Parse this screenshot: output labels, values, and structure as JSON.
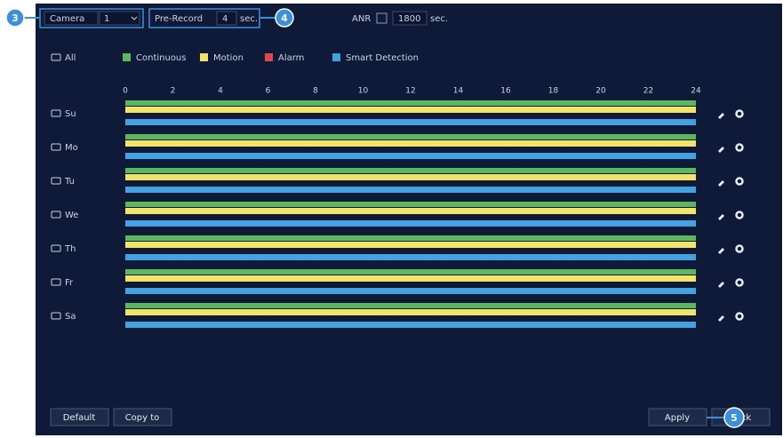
{
  "top_bar": {
    "camera_label": "Camera",
    "camera_value": "1",
    "prerecord_label": "Pre-Record",
    "prerecord_value": "4",
    "prerecord_unit": "sec.",
    "anr_label": "ANR",
    "anr_value": "1800",
    "anr_unit": "sec."
  },
  "callouts": [
    "3",
    "4",
    "5"
  ],
  "all_label": "All",
  "legend": [
    {
      "label": "Continuous",
      "color": "#5cb85c"
    },
    {
      "label": "Motion",
      "color": "#f2e46b"
    },
    {
      "label": "Alarm",
      "color": "#e0474c"
    },
    {
      "label": "Smart Detection",
      "color": "#45a2e0"
    }
  ],
  "timeline": {
    "ticks": [
      0,
      2,
      4,
      6,
      8,
      10,
      12,
      14,
      16,
      18,
      20,
      22,
      24
    ]
  },
  "days": [
    {
      "label": "Su",
      "bars": [
        [
          0,
          24
        ],
        [
          0,
          24
        ],
        null,
        [
          0,
          24
        ]
      ]
    },
    {
      "label": "Mo",
      "bars": [
        [
          0,
          24
        ],
        [
          0,
          24
        ],
        null,
        [
          0,
          24
        ]
      ]
    },
    {
      "label": "Tu",
      "bars": [
        [
          0,
          24
        ],
        [
          0,
          24
        ],
        null,
        [
          0,
          24
        ]
      ]
    },
    {
      "label": "We",
      "bars": [
        [
          0,
          24
        ],
        [
          0,
          24
        ],
        null,
        [
          0,
          24
        ]
      ]
    },
    {
      "label": "Th",
      "bars": [
        [
          0,
          24
        ],
        [
          0,
          24
        ],
        null,
        [
          0,
          24
        ]
      ]
    },
    {
      "label": "Fr",
      "bars": [
        [
          0,
          24
        ],
        [
          0,
          24
        ],
        null,
        [
          0,
          24
        ]
      ]
    },
    {
      "label": "Sa",
      "bars": [
        [
          0,
          24
        ],
        [
          0,
          24
        ],
        null,
        [
          0,
          24
        ]
      ]
    }
  ],
  "buttons": {
    "default": "Default",
    "copy_to": "Copy to",
    "apply": "Apply",
    "back": "Back"
  }
}
